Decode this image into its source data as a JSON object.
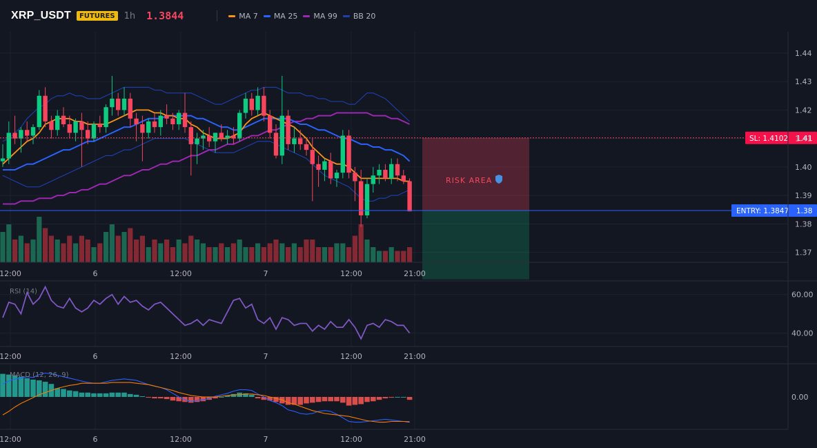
{
  "header": {
    "symbol": "XRP_USDT",
    "badge": "FUTURES",
    "interval": "1h",
    "last_price": "1.3844",
    "legend": [
      {
        "label": "MA 7",
        "color": "#f7931a"
      },
      {
        "label": "MA 25",
        "color": "#2962ff"
      },
      {
        "label": "MA 99",
        "color": "#9c27b0"
      },
      {
        "label": "BB 20",
        "color": "#1e40af"
      }
    ]
  },
  "colors": {
    "up": "#0ecb81",
    "down": "#f6465d",
    "ma7": "#f7931a",
    "ma25": "#2962ff",
    "ma99": "#9c27b0",
    "bb": "#1e40af",
    "rsi": "#7e57c2",
    "macd": "#2962ff",
    "signal": "#f57c00"
  },
  "trade": {
    "sl_label": "SL: 1.4102",
    "sl_axis": "1.41",
    "sl_price": 1.4102,
    "entry_label": "ENTRY: 1.3847",
    "entry_axis": "1.38",
    "entry_price": 1.3847,
    "risk_label": "RISK AREA",
    "risk_icon": "shield-icon",
    "target_price": 1.3605
  },
  "chart_data": {
    "type": "candlestick",
    "x_tick_labels": [
      "12:00",
      "6",
      "12:00",
      "7",
      "12:00",
      "21:00"
    ],
    "y_tick_labels": [
      "1.44",
      "1.43",
      "1.42",
      "1.41",
      "1.40",
      "1.39",
      "1.38",
      "1.37"
    ],
    "ylim": [
      1.3665,
      1.4475
    ],
    "candles": [
      [
        1.402,
        1.408,
        1.4,
        1.403
      ],
      [
        1.403,
        1.416,
        1.401,
        1.412
      ],
      [
        1.412,
        1.418,
        1.408,
        1.41
      ],
      [
        1.41,
        1.414,
        1.405,
        1.413
      ],
      [
        1.413,
        1.416,
        1.409,
        1.411
      ],
      [
        1.411,
        1.415,
        1.408,
        1.414
      ],
      [
        1.414,
        1.427,
        1.413,
        1.425
      ],
      [
        1.425,
        1.428,
        1.414,
        1.416
      ],
      [
        1.416,
        1.418,
        1.41,
        1.413
      ],
      [
        1.413,
        1.42,
        1.411,
        1.418
      ],
      [
        1.418,
        1.421,
        1.414,
        1.415
      ],
      [
        1.415,
        1.418,
        1.41,
        1.412
      ],
      [
        1.412,
        1.417,
        1.409,
        1.416
      ],
      [
        1.416,
        1.419,
        1.4,
        1.413
      ],
      [
        1.413,
        1.416,
        1.408,
        1.41
      ],
      [
        1.41,
        1.416,
        1.409,
        1.415
      ],
      [
        1.415,
        1.418,
        1.412,
        1.414
      ],
      [
        1.414,
        1.422,
        1.412,
        1.421
      ],
      [
        1.421,
        1.432,
        1.418,
        1.424
      ],
      [
        1.424,
        1.426,
        1.418,
        1.42
      ],
      [
        1.42,
        1.428,
        1.418,
        1.424
      ],
      [
        1.424,
        1.426,
        1.414,
        1.417
      ],
      [
        1.417,
        1.419,
        1.409,
        1.415
      ],
      [
        1.415,
        1.418,
        1.402,
        1.412
      ],
      [
        1.412,
        1.417,
        1.41,
        1.416
      ],
      [
        1.416,
        1.419,
        1.412,
        1.414
      ],
      [
        1.414,
        1.42,
        1.411,
        1.418
      ],
      [
        1.418,
        1.422,
        1.415,
        1.417
      ],
      [
        1.417,
        1.419,
        1.413,
        1.415
      ],
      [
        1.415,
        1.42,
        1.413,
        1.419
      ],
      [
        1.419,
        1.426,
        1.412,
        1.414
      ],
      [
        1.414,
        1.416,
        1.397,
        1.408
      ],
      [
        1.408,
        1.412,
        1.401,
        1.41
      ],
      [
        1.41,
        1.413,
        1.406,
        1.411
      ],
      [
        1.411,
        1.414,
        1.407,
        1.409
      ],
      [
        1.409,
        1.412,
        1.405,
        1.412
      ],
      [
        1.412,
        1.415,
        1.409,
        1.41
      ],
      [
        1.41,
        1.413,
        1.408,
        1.411
      ],
      [
        1.411,
        1.414,
        1.408,
        1.41
      ],
      [
        1.41,
        1.42,
        1.409,
        1.419
      ],
      [
        1.419,
        1.426,
        1.417,
        1.424
      ],
      [
        1.424,
        1.426,
        1.418,
        1.42
      ],
      [
        1.42,
        1.428,
        1.418,
        1.425
      ],
      [
        1.425,
        1.428,
        1.416,
        1.418
      ],
      [
        1.418,
        1.42,
        1.41,
        1.412
      ],
      [
        1.412,
        1.415,
        1.403,
        1.404
      ],
      [
        1.404,
        1.432,
        1.401,
        1.418
      ],
      [
        1.418,
        1.42,
        1.406,
        1.408
      ],
      [
        1.408,
        1.414,
        1.405,
        1.41
      ],
      [
        1.41,
        1.413,
        1.406,
        1.408
      ],
      [
        1.408,
        1.41,
        1.404,
        1.406
      ],
      [
        1.406,
        1.41,
        1.388,
        1.401
      ],
      [
        1.401,
        1.404,
        1.393,
        1.399
      ],
      [
        1.399,
        1.403,
        1.395,
        1.402
      ],
      [
        1.402,
        1.405,
        1.394,
        1.396
      ],
      [
        1.396,
        1.399,
        1.393,
        1.398
      ],
      [
        1.398,
        1.413,
        1.396,
        1.411
      ],
      [
        1.411,
        1.413,
        1.396,
        1.398
      ],
      [
        1.398,
        1.4,
        1.388,
        1.395
      ],
      [
        1.395,
        1.399,
        1.379,
        1.383
      ],
      [
        1.383,
        1.396,
        1.382,
        1.394
      ],
      [
        1.394,
        1.4,
        1.391,
        1.397
      ],
      [
        1.397,
        1.401,
        1.394,
        1.399
      ],
      [
        1.399,
        1.401,
        1.395,
        1.396
      ],
      [
        1.396,
        1.403,
        1.394,
        1.401
      ],
      [
        1.401,
        1.403,
        1.395,
        1.397
      ],
      [
        1.397,
        1.399,
        1.394,
        1.395
      ],
      [
        1.395,
        1.396,
        1.3844,
        1.3844
      ]
    ],
    "volume": [
      8,
      10,
      6,
      7,
      5,
      6,
      12,
      9,
      7,
      6,
      5,
      7,
      5,
      7,
      6,
      4,
      5,
      8,
      10,
      7,
      8,
      9,
      6,
      7,
      4,
      6,
      5,
      6,
      4,
      6,
      5,
      7,
      6,
      5,
      4,
      4,
      5,
      4,
      5,
      6,
      4,
      4,
      5,
      4,
      5,
      6,
      5,
      4,
      5,
      4,
      6,
      6,
      4,
      4,
      4,
      5,
      5,
      4,
      7,
      10,
      6,
      4,
      3,
      3,
      4,
      3,
      3,
      4
    ],
    "volume_scale_max": 12,
    "ma7": [
      1.401,
      1.403,
      1.405,
      1.407,
      1.409,
      1.41,
      1.412,
      1.415,
      1.416,
      1.417,
      1.417,
      1.417,
      1.416,
      1.416,
      1.415,
      1.415,
      1.415,
      1.415,
      1.416,
      1.417,
      1.418,
      1.419,
      1.42,
      1.42,
      1.42,
      1.419,
      1.419,
      1.418,
      1.418,
      1.417,
      1.417,
      1.415,
      1.414,
      1.412,
      1.411,
      1.41,
      1.41,
      1.41,
      1.411,
      1.412,
      1.415,
      1.417,
      1.418,
      1.419,
      1.418,
      1.417,
      1.416,
      1.415,
      1.414,
      1.412,
      1.41,
      1.407,
      1.405,
      1.403,
      1.402,
      1.401,
      1.401,
      1.4,
      1.398,
      1.396,
      1.396,
      1.396,
      1.396,
      1.396,
      1.396,
      1.396,
      1.395,
      1.395
    ],
    "ma25": [
      1.399,
      1.399,
      1.399,
      1.4,
      1.401,
      1.401,
      1.402,
      1.403,
      1.404,
      1.405,
      1.406,
      1.406,
      1.407,
      1.408,
      1.409,
      1.409,
      1.41,
      1.411,
      1.412,
      1.413,
      1.414,
      1.414,
      1.415,
      1.416,
      1.417,
      1.417,
      1.417,
      1.418,
      1.418,
      1.418,
      1.418,
      1.418,
      1.417,
      1.417,
      1.416,
      1.415,
      1.414,
      1.414,
      1.413,
      1.413,
      1.414,
      1.415,
      1.416,
      1.417,
      1.417,
      1.417,
      1.417,
      1.417,
      1.416,
      1.415,
      1.415,
      1.414,
      1.413,
      1.413,
      1.412,
      1.411,
      1.41,
      1.41,
      1.409,
      1.408,
      1.408,
      1.407,
      1.407,
      1.406,
      1.406,
      1.405,
      1.404,
      1.402
    ],
    "ma99": [
      1.387,
      1.387,
      1.387,
      1.388,
      1.388,
      1.388,
      1.389,
      1.389,
      1.389,
      1.39,
      1.39,
      1.391,
      1.391,
      1.392,
      1.392,
      1.393,
      1.394,
      1.394,
      1.395,
      1.396,
      1.397,
      1.397,
      1.398,
      1.399,
      1.399,
      1.4,
      1.401,
      1.401,
      1.402,
      1.402,
      1.403,
      1.404,
      1.404,
      1.405,
      1.406,
      1.406,
      1.407,
      1.408,
      1.408,
      1.409,
      1.41,
      1.411,
      1.411,
      1.412,
      1.413,
      1.413,
      1.414,
      1.415,
      1.416,
      1.416,
      1.417,
      1.417,
      1.418,
      1.418,
      1.418,
      1.419,
      1.419,
      1.419,
      1.419,
      1.419,
      1.419,
      1.418,
      1.418,
      1.418,
      1.417,
      1.417,
      1.416,
      1.415
    ],
    "bb_upper": [
      1.409,
      1.41,
      1.412,
      1.414,
      1.417,
      1.419,
      1.421,
      1.422,
      1.424,
      1.425,
      1.425,
      1.426,
      1.425,
      1.425,
      1.424,
      1.424,
      1.424,
      1.425,
      1.426,
      1.427,
      1.428,
      1.428,
      1.428,
      1.428,
      1.428,
      1.427,
      1.427,
      1.426,
      1.426,
      1.426,
      1.426,
      1.426,
      1.425,
      1.424,
      1.423,
      1.422,
      1.422,
      1.423,
      1.424,
      1.425,
      1.426,
      1.427,
      1.427,
      1.428,
      1.428,
      1.428,
      1.427,
      1.426,
      1.426,
      1.426,
      1.425,
      1.425,
      1.424,
      1.424,
      1.423,
      1.423,
      1.423,
      1.422,
      1.422,
      1.424,
      1.426,
      1.426,
      1.425,
      1.424,
      1.422,
      1.42,
      1.418,
      1.416
    ],
    "bb_lower": [
      1.397,
      1.396,
      1.395,
      1.394,
      1.393,
      1.393,
      1.393,
      1.394,
      1.395,
      1.396,
      1.397,
      1.398,
      1.399,
      1.4,
      1.401,
      1.402,
      1.403,
      1.404,
      1.404,
      1.405,
      1.406,
      1.406,
      1.407,
      1.408,
      1.409,
      1.41,
      1.41,
      1.41,
      1.41,
      1.41,
      1.41,
      1.409,
      1.408,
      1.407,
      1.406,
      1.405,
      1.405,
      1.405,
      1.405,
      1.406,
      1.407,
      1.408,
      1.409,
      1.409,
      1.409,
      1.408,
      1.407,
      1.406,
      1.405,
      1.404,
      1.403,
      1.401,
      1.399,
      1.397,
      1.396,
      1.395,
      1.394,
      1.393,
      1.391,
      1.389,
      1.388,
      1.388,
      1.389,
      1.389,
      1.39,
      1.39,
      1.391,
      1.392
    ],
    "rsi": {
      "label": "RSI (14)",
      "y_tick_labels": [
        "60.00",
        "40.00"
      ],
      "ylim": [
        33,
        66
      ],
      "values": [
        48,
        56,
        55,
        50,
        61,
        55,
        58,
        64,
        57,
        54,
        53,
        58,
        53,
        51,
        53,
        57,
        55,
        58,
        60,
        55,
        59,
        56,
        57,
        54,
        52,
        55,
        56,
        53,
        50,
        47,
        44,
        45,
        47,
        44,
        47,
        46,
        45,
        51,
        57,
        58,
        53,
        55,
        47,
        45,
        48,
        42,
        48,
        47,
        44,
        45,
        45,
        41,
        44,
        42,
        46,
        43,
        43,
        47,
        43,
        37,
        44,
        45,
        43,
        47,
        46,
        44,
        44,
        40
      ]
    },
    "macd": {
      "label": "MACD (12, 26, 9)",
      "y_tick_labels": [
        "0.00"
      ],
      "ylim": [
        -0.0045,
        0.0045
      ],
      "macd_line": [
        0.0018,
        0.0022,
        0.0025,
        0.0026,
        0.0028,
        0.0027,
        0.0031,
        0.0033,
        0.0032,
        0.003,
        0.0028,
        0.0026,
        0.0024,
        0.0022,
        0.002,
        0.0019,
        0.0019,
        0.0021,
        0.0023,
        0.0024,
        0.0025,
        0.0024,
        0.0023,
        0.002,
        0.0017,
        0.0015,
        0.0013,
        0.001,
        0.0005,
        0.0,
        -0.0004,
        -0.0006,
        -0.0005,
        -0.0004,
        -0.0002,
        0.0001,
        0.0003,
        0.0005,
        0.0008,
        0.001,
        0.001,
        0.0009,
        0.0004,
        0.0,
        -0.0005,
        -0.0008,
        -0.0012,
        -0.0018,
        -0.002,
        -0.0023,
        -0.0024,
        -0.0023,
        -0.002,
        -0.0019,
        -0.002,
        -0.0024,
        -0.0029,
        -0.0034,
        -0.0035,
        -0.0035,
        -0.0034,
        -0.0033,
        -0.0032,
        -0.0031,
        -0.0032,
        -0.0033,
        -0.0034,
        -0.0034
      ],
      "signal_line": [
        -0.0025,
        -0.002,
        -0.0014,
        -0.0009,
        -0.0005,
        -0.0001,
        0.0003,
        0.0006,
        0.0009,
        0.0012,
        0.0014,
        0.0016,
        0.0017,
        0.0019,
        0.0019,
        0.0019,
        0.0019,
        0.0019,
        0.002,
        0.002,
        0.002,
        0.002,
        0.0019,
        0.0018,
        0.0017,
        0.0015,
        0.0013,
        0.0011,
        0.0009,
        0.0006,
        0.0004,
        0.0002,
        0.0001,
        0.0,
        0.0,
        0.0,
        0.0001,
        0.0002,
        0.0003,
        0.0003,
        0.0004,
        0.0004,
        0.0003,
        0.0002,
        0.0,
        -0.0002,
        -0.0004,
        -0.0008,
        -0.001,
        -0.0013,
        -0.0016,
        -0.0019,
        -0.0021,
        -0.0023,
        -0.0024,
        -0.0025,
        -0.0026,
        -0.0027,
        -0.0029,
        -0.0031,
        -0.0033,
        -0.0034,
        -0.0035,
        -0.0035,
        -0.0034,
        -0.0034,
        -0.0034,
        -0.0035
      ],
      "histogram": [
        0.0032,
        0.0031,
        0.003,
        0.0028,
        0.0026,
        0.0024,
        0.0023,
        0.0021,
        0.0018,
        0.0012,
        0.0011,
        0.0009,
        0.0008,
        0.0006,
        0.0006,
        0.0005,
        0.0005,
        0.0005,
        0.0006,
        0.0006,
        0.0006,
        0.0004,
        0.0003,
        0.0001,
        -0.0001,
        -0.0002,
        -0.0002,
        -0.0003,
        -0.0005,
        -0.0006,
        -0.0007,
        -0.0008,
        -0.0007,
        -0.0006,
        -0.0004,
        -0.0002,
        0.0,
        0.0002,
        0.0004,
        0.0006,
        0.0005,
        0.0003,
        -0.0002,
        -0.0004,
        -0.0005,
        -0.0007,
        -0.0009,
        -0.0011,
        -0.0011,
        -0.0011,
        -0.0009,
        -0.0008,
        -0.0007,
        -0.0006,
        -0.0006,
        -0.0006,
        -0.0008,
        -0.0012,
        -0.0011,
        -0.001,
        -0.0007,
        -0.0006,
        -0.0004,
        -0.0002,
        -0.0001,
        0.0,
        0.0,
        -0.0004
      ]
    }
  }
}
